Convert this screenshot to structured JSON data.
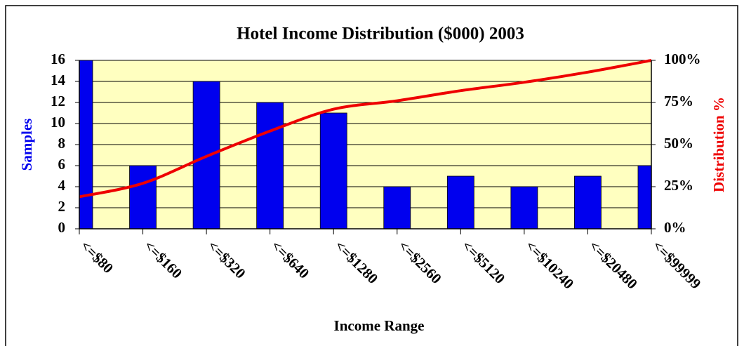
{
  "chart_data": {
    "type": "bar",
    "title": "Hotel Income Distribution ($000) 2003",
    "x_label": "Income Range",
    "y_label": "Samples",
    "y2_label": "Distribution %",
    "categories": [
      "<=$80",
      "<=$160",
      "<=$320",
      "<=$640",
      "<=$1280",
      "<=$2560",
      "<=$5120",
      "<=$10240",
      "<=$20480",
      "<=$99999"
    ],
    "series": [
      {
        "type": "bar",
        "color": "#0000ee",
        "values": [
          16,
          6,
          14,
          12,
          11,
          4,
          5,
          4,
          5,
          6
        ]
      },
      {
        "type": "line",
        "color": "#ee0000",
        "axis": "y2",
        "values": [
          19,
          27,
          43,
          58,
          71,
          76,
          82,
          87,
          93,
          100
        ]
      }
    ],
    "ylim": [
      0,
      16
    ],
    "yticks": [
      0,
      2,
      4,
      6,
      8,
      10,
      12,
      14,
      16
    ],
    "y2lim": [
      0,
      100
    ],
    "y2ticks": [
      {
        "value": 0,
        "label": "0%"
      },
      {
        "value": 25,
        "label": "25%"
      },
      {
        "value": 50,
        "label": "50%"
      },
      {
        "value": 75,
        "label": "75%"
      },
      {
        "value": 100,
        "label": "100%"
      }
    ],
    "grid": true,
    "plot_background": "#ffffc0"
  }
}
